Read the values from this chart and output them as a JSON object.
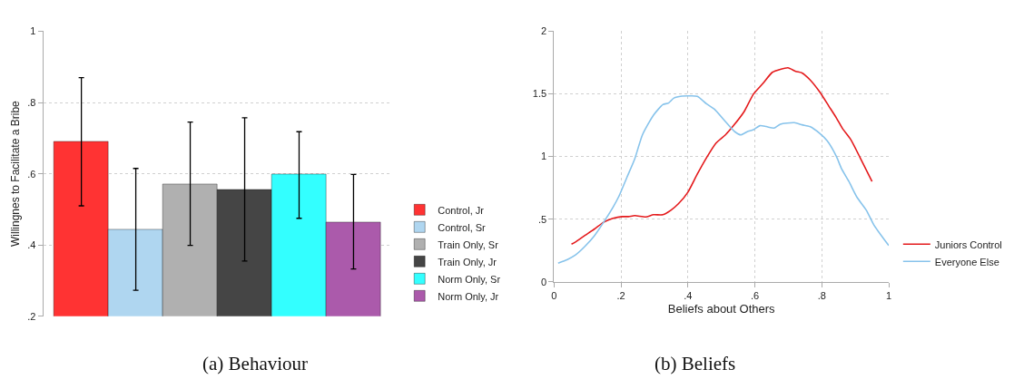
{
  "chart_data": [
    {
      "type": "bar",
      "ylabel": "Willingnes to Facilitate a Bribe",
      "categories": [
        null,
        null,
        null,
        null,
        null,
        null
      ],
      "series": [
        {
          "name": "Control, Jr",
          "color": "#ff3333",
          "values": [
            0.69,
            null,
            null,
            null,
            null,
            null
          ],
          "errors": [
            [
              0.51,
              0.87
            ],
            null,
            null,
            null,
            null,
            null
          ]
        },
        {
          "name": "Control, Sr",
          "color": "#afd6f0",
          "values": [
            null,
            0.443,
            null,
            null,
            null,
            null
          ],
          "errors": [
            null,
            [
              0.273,
              0.615
            ],
            null,
            null,
            null,
            null
          ]
        },
        {
          "name": "Train Only, Sr",
          "color": "#b0b0b0",
          "values": [
            null,
            null,
            0.571,
            null,
            null,
            null
          ],
          "errors": [
            null,
            null,
            [
              0.399,
              0.745
            ],
            null,
            null,
            null
          ]
        },
        {
          "name": "Train Only, Jr",
          "color": "#454545",
          "values": [
            null,
            null,
            null,
            0.555,
            null,
            null
          ],
          "errors": [
            null,
            null,
            null,
            [
              0.355,
              0.757
            ],
            null,
            null
          ]
        },
        {
          "name": "Norm Only, Sr",
          "color": "#33ffff",
          "values": [
            null,
            null,
            null,
            null,
            0.597,
            null
          ],
          "errors": [
            null,
            null,
            null,
            null,
            [
              0.475,
              0.718
            ],
            null
          ]
        },
        {
          "name": "Norm Only, Jr",
          "color": "#ab5aab",
          "values": [
            null,
            null,
            null,
            null,
            null,
            0.464
          ],
          "errors": [
            null,
            null,
            null,
            null,
            null,
            [
              0.333,
              0.598
            ]
          ]
        }
      ],
      "ylim": [
        0.2,
        1
      ],
      "yticks": [
        {
          "value": 0.2,
          "label": ".2"
        },
        {
          "value": 0.4,
          "label": ".4"
        },
        {
          "value": 0.6,
          "label": ".6"
        },
        {
          "value": 0.8,
          "label": ".8"
        },
        1
      ],
      "grid": "y",
      "legend": "bottom right",
      "annotations": [
        "(a) Behaviour"
      ]
    },
    {
      "type": "line",
      "xlabel": "Beliefs about Others",
      "series": [
        {
          "name": "Juniors Control",
          "color": "#e41a1c",
          "x": [
            0.052,
            0.064,
            0.092,
            0.12,
            0.148,
            0.176,
            0.204,
            0.222,
            0.241,
            0.274,
            0.297,
            0.325,
            0.349,
            0.372,
            0.4,
            0.428,
            0.456,
            0.484,
            0.512,
            0.536,
            0.568,
            0.596,
            0.624,
            0.652,
            0.676,
            0.699,
            0.722,
            0.741,
            0.764,
            0.793,
            0.821,
            0.844,
            0.862,
            0.886,
            0.914,
            0.95
          ],
          "values": [
            0.3,
            0.318,
            0.37,
            0.42,
            0.475,
            0.506,
            0.52,
            0.52,
            0.528,
            0.518,
            0.535,
            0.535,
            0.571,
            0.624,
            0.716,
            0.86,
            0.993,
            1.108,
            1.173,
            1.246,
            1.359,
            1.499,
            1.583,
            1.672,
            1.696,
            1.708,
            1.68,
            1.667,
            1.614,
            1.518,
            1.402,
            1.306,
            1.222,
            1.137,
            0.993,
            0.8
          ]
        },
        {
          "name": "Everyone Else",
          "color": "#87c3eb",
          "x": [
            0.012,
            0.04,
            0.064,
            0.092,
            0.12,
            0.148,
            0.176,
            0.194,
            0.218,
            0.241,
            0.264,
            0.297,
            0.325,
            0.342,
            0.358,
            0.382,
            0.405,
            0.428,
            0.456,
            0.479,
            0.507,
            0.54,
            0.558,
            0.577,
            0.596,
            0.615,
            0.634,
            0.657,
            0.676,
            0.718,
            0.741,
            0.764,
            0.793,
            0.816,
            0.844,
            0.858,
            0.881,
            0.905,
            0.933,
            0.956,
            1.0
          ],
          "values": [
            0.149,
            0.178,
            0.214,
            0.282,
            0.366,
            0.475,
            0.595,
            0.684,
            0.836,
            0.981,
            1.173,
            1.33,
            1.414,
            1.427,
            1.467,
            1.482,
            1.484,
            1.48,
            1.419,
            1.378,
            1.294,
            1.198,
            1.173,
            1.198,
            1.214,
            1.246,
            1.239,
            1.227,
            1.258,
            1.27,
            1.253,
            1.239,
            1.186,
            1.125,
            0.998,
            0.908,
            0.8,
            0.675,
            0.571,
            0.451,
            0.289
          ]
        }
      ],
      "xlim": [
        0,
        1
      ],
      "xticks": [
        0,
        {
          "value": 0.2,
          "label": ".2"
        },
        {
          "value": 0.4,
          "label": ".4"
        },
        {
          "value": 0.6,
          "label": ".6"
        },
        {
          "value": 0.8,
          "label": ".8"
        },
        1
      ],
      "ylim": [
        0,
        2
      ],
      "yticks": [
        0,
        {
          "value": 0.5,
          "label": ".5"
        },
        1,
        1.5,
        2
      ],
      "grid": true,
      "legend": "bottom right",
      "line_style": "solid",
      "marker": "none",
      "annotations": [
        "(b) Beliefs"
      ]
    }
  ]
}
